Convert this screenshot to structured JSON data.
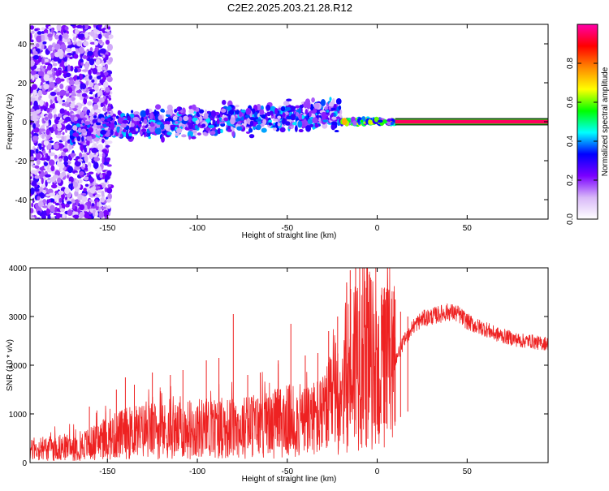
{
  "title": "C2E2.2025.203.21.28.R12",
  "chart_data": [
    {
      "type": "heatmap",
      "xlabel": "Height of straight line (km)",
      "ylabel": "Frequency (Hz)",
      "xlim": [
        -193,
        95
      ],
      "ylim": [
        -50,
        50
      ],
      "x_ticks": [
        "-150",
        "-100",
        "-50",
        "0",
        "50"
      ],
      "x_tick_values": [
        -150,
        -100,
        -50,
        0,
        50
      ],
      "y_ticks": [
        "-40",
        "-20",
        "0",
        "20",
        "40"
      ],
      "y_tick_values": [
        -40,
        -20,
        0,
        20,
        40
      ],
      "colorbar": {
        "label": "Normalized spectral amplitude",
        "range": [
          0,
          1
        ],
        "ticks": [
          "0.0",
          "0.2",
          "0.4",
          "0.6",
          "0.8"
        ],
        "tick_values": [
          0.0,
          0.2,
          0.4,
          0.6,
          0.8
        ],
        "colors": [
          "#ffffff",
          "#d8b8f8",
          "#7a00ff",
          "#0000ff",
          "#00ffff",
          "#00ff00",
          "#ffff00",
          "#ff8800",
          "#ff0000",
          "#ff00aa"
        ]
      },
      "regions": [
        {
          "x_from": -193,
          "x_to": -148,
          "f_from": -50,
          "f_to": 50,
          "amplitude": 0.15
        },
        {
          "x_from": -170,
          "x_to": -20,
          "f_from": -10,
          "f_to": 10,
          "amplitude": 0.35
        },
        {
          "x_from": -20,
          "x_to": 10,
          "f_from": -2,
          "f_to": 2,
          "amplitude": 0.6
        },
        {
          "x_from": 10,
          "x_to": 95,
          "f_from": -1,
          "f_to": 1,
          "amplitude": 0.95
        }
      ]
    },
    {
      "type": "line",
      "xlabel": "Height of straight line (km)",
      "ylabel": "SNR (10 * v/v)",
      "xlim": [
        -193,
        95
      ],
      "ylim": [
        0,
        4000
      ],
      "x_ticks": [
        "-150",
        "-100",
        "-50",
        "0",
        "50"
      ],
      "x_tick_values": [
        -150,
        -100,
        -50,
        0,
        50
      ],
      "y_ticks": [
        "0",
        "1000",
        "2000",
        "3000",
        "4000"
      ],
      "y_tick_values": [
        0,
        1000,
        2000,
        3000,
        4000
      ],
      "color": "#ee2222",
      "series": [
        {
          "x": [
            -193,
            -180,
            -170,
            -160,
            -150,
            -140,
            -130,
            -120,
            -110,
            -100,
            -90,
            -80,
            -70,
            -60,
            -50,
            -40,
            -30,
            -20,
            -15,
            -10,
            -5,
            0,
            5,
            10,
            15,
            20,
            25,
            30,
            35,
            40,
            45,
            50,
            55,
            60,
            65,
            70,
            75,
            80,
            85,
            90,
            95
          ],
          "values": [
            250,
            300,
            320,
            380,
            500,
            600,
            650,
            650,
            650,
            700,
            720,
            700,
            750,
            780,
            850,
            850,
            950,
            1500,
            2000,
            2300,
            2200,
            1800,
            2000,
            2100,
            2500,
            2800,
            2950,
            3000,
            3050,
            3100,
            3050,
            2900,
            2800,
            2750,
            2650,
            2600,
            2550,
            2500,
            2500,
            2450,
            2450
          ],
          "spikes": [
            {
              "x": -160,
              "value": 1150
            },
            {
              "x": -145,
              "value": 1500
            },
            {
              "x": -140,
              "value": 1750
            },
            {
              "x": -135,
              "value": 1600
            },
            {
              "x": -125,
              "value": 1850
            },
            {
              "x": -115,
              "value": 1800
            },
            {
              "x": -108,
              "value": 1900
            },
            {
              "x": -95,
              "value": 2100
            },
            {
              "x": -88,
              "value": 2150
            },
            {
              "x": -80,
              "value": 3050
            },
            {
              "x": -72,
              "value": 1800
            },
            {
              "x": -65,
              "value": 1850
            },
            {
              "x": -55,
              "value": 2100
            },
            {
              "x": -48,
              "value": 2850
            },
            {
              "x": -40,
              "value": 2200
            },
            {
              "x": -33,
              "value": 2250
            },
            {
              "x": -27,
              "value": 2700
            },
            {
              "x": -22,
              "value": 3000
            },
            {
              "x": -17,
              "value": 3700
            },
            {
              "x": -15,
              "value": 3950
            },
            {
              "x": -12,
              "value": 4000
            },
            {
              "x": -8,
              "value": 4000
            },
            {
              "x": -5,
              "value": 3300
            },
            {
              "x": 5,
              "value": 3500
            },
            {
              "x": 10,
              "value": 3350
            },
            {
              "x": 13,
              "value": 3100
            },
            {
              "x": 17,
              "value": 3000
            }
          ]
        }
      ]
    }
  ]
}
